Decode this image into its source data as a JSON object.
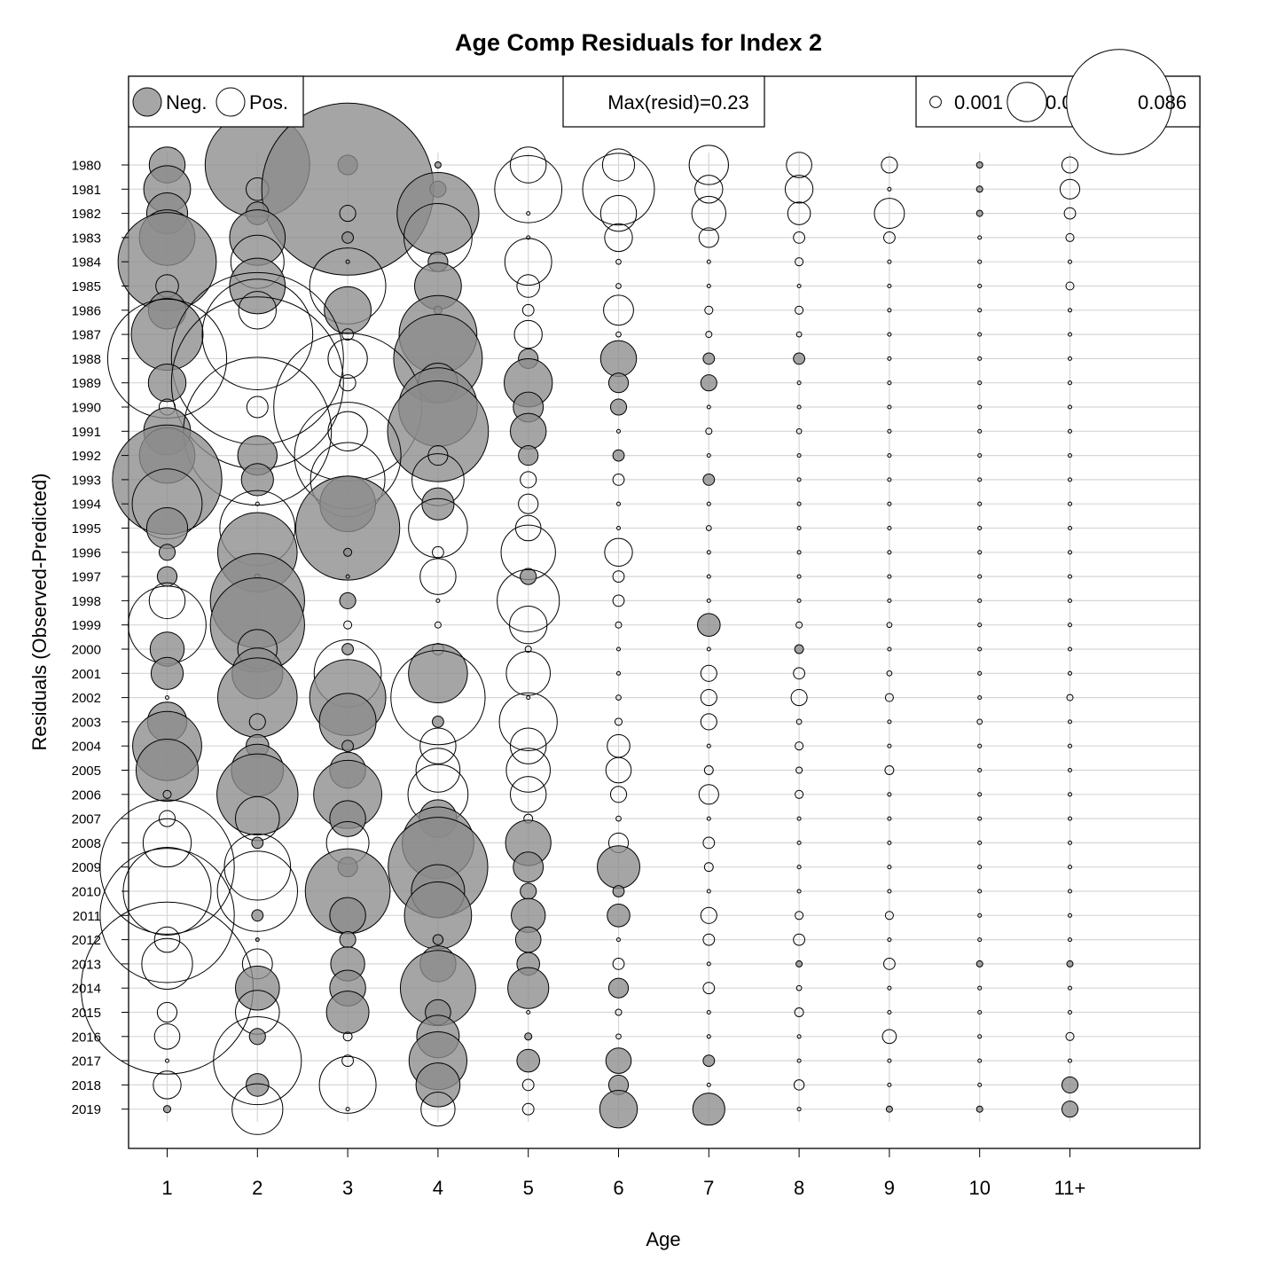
{
  "chart_data": {
    "type": "bubble",
    "title": "Age Comp Residuals for Index 2",
    "xlabel": "Age",
    "ylabel": "Residuals (Observed-Predicted)",
    "categories": [
      "1",
      "2",
      "3",
      "4",
      "5",
      "6",
      "7",
      "8",
      "9",
      "10",
      "11+"
    ],
    "years": [
      1980,
      1981,
      1982,
      1983,
      1984,
      1985,
      1986,
      1987,
      1988,
      1989,
      1990,
      1991,
      1992,
      1993,
      1994,
      1995,
      1996,
      1997,
      1998,
      1999,
      2000,
      2001,
      2002,
      2003,
      2004,
      2005,
      2006,
      2007,
      2008,
      2009,
      2010,
      2011,
      2012,
      2013,
      2014,
      2015,
      2016,
      2017,
      2018,
      2019
    ],
    "residuals": [
      [
        -0.01,
        -0.085,
        -0.003,
        -0.0003,
        0.01,
        0.008,
        0.012,
        0.005,
        0.002,
        -0.0003,
        0.002
      ],
      [
        -0.017,
        0.004,
        -0.23,
        -0.002,
        0.035,
        0.04,
        0.006,
        0.006,
        0.0001,
        -0.0003,
        0.003
      ],
      [
        -0.013,
        -0.004,
        0.002,
        -0.052,
        0.0001,
        0.01,
        0.009,
        0.004,
        0.007,
        -0.0003,
        0.001
      ],
      [
        -0.024,
        -0.024,
        -0.001,
        0.036,
        0.0001,
        0.006,
        0.003,
        0.001,
        0.001,
        0.0001,
        0.0005
      ],
      [
        -0.075,
        0.022,
        0.0001,
        -0.003,
        0.017,
        0.0002,
        0.0001,
        0.0005,
        0.0001,
        0.0001,
        0.0001
      ],
      [
        0.004,
        -0.024,
        0.045,
        -0.017,
        0.004,
        0.0002,
        0.0001,
        0.0001,
        0.0001,
        0.0001,
        0.0005
      ],
      [
        -0.011,
        0.011,
        -0.017,
        -0.0005,
        0.001,
        0.007,
        0.0005,
        0.0005,
        0.0001,
        0.0001,
        0.0001
      ],
      [
        -0.04,
        0.095,
        0.001,
        -0.047,
        0.006,
        0.0002,
        0.0003,
        0.0002,
        0.0001,
        0.0001,
        0.0001
      ],
      [
        0.11,
        0.23,
        0.012,
        -0.061,
        -0.003,
        -0.01,
        -0.001,
        -0.001,
        0.0001,
        0.0001,
        0.0001
      ],
      [
        -0.011,
        0.23,
        0.002,
        -0.012,
        -0.018,
        -0.003,
        -0.002,
        0.0001,
        0.0001,
        0.0001,
        0.0001
      ],
      [
        0.002,
        0.0035,
        0.17,
        -0.048,
        -0.007,
        -0.002,
        0.0001,
        0.0001,
        0.0001,
        0.0001,
        0.0001
      ],
      [
        -0.017,
        0.17,
        0.012,
        -0.079,
        -0.01,
        0.0001,
        0.0003,
        0.0002,
        0.0001,
        0.0001,
        0.0001
      ],
      [
        -0.024,
        -0.012,
        0.088,
        0.003,
        -0.003,
        -0.001,
        0.0001,
        0.0001,
        0.0001,
        0.0001,
        0.0001
      ],
      [
        -0.093,
        -0.008,
        0.043,
        0.021,
        0.002,
        0.001,
        -0.001,
        0.0001,
        0.0001,
        0.0001,
        0.0001
      ],
      [
        0.038,
        0.0001,
        -0.024,
        -0.008,
        0.003,
        0.0001,
        0.0001,
        0.0001,
        0.0001,
        0.0001,
        0.0001
      ],
      [
        -0.013,
        0.044,
        -0.084,
        0.027,
        0.005,
        0.0001,
        0.0002,
        0.0001,
        0.0001,
        0.0001,
        0.0001
      ],
      [
        -0.002,
        -0.049,
        -0.0005,
        0.001,
        0.023,
        0.006,
        0.0001,
        0.0001,
        0.0001,
        0.0001,
        0.0001
      ],
      [
        -0.003,
        -0.0002,
        0.0001,
        0.01,
        -0.002,
        0.001,
        0.0001,
        0.0001,
        0.0001,
        0.0001,
        0.0001
      ],
      [
        0.01,
        -0.069,
        -0.002,
        0.0001,
        0.03,
        0.001,
        0.0001,
        0.0001,
        0.0001,
        0.0001,
        0.0001
      ],
      [
        0.047,
        -0.069,
        0.0005,
        0.0003,
        0.011,
        0.0003,
        -0.004,
        0.0003,
        0.0002,
        0.0001,
        0.0001
      ],
      [
        -0.009,
        0.012,
        -0.001,
        0.001,
        0.0003,
        0.0001,
        0.0001,
        -0.0006,
        0.0001,
        0.0001,
        0.0001
      ],
      [
        -0.008,
        -0.02,
        0.035,
        -0.027,
        0.015,
        0.0001,
        0.002,
        0.001,
        0.0002,
        0.0001,
        0.0001
      ],
      [
        0.0001,
        -0.049,
        -0.045,
        0.069,
        0.0001,
        0.0002,
        0.002,
        0.002,
        0.0005,
        0.0001,
        0.0003
      ],
      [
        -0.012,
        0.002,
        -0.025,
        -0.001,
        0.026,
        0.0004,
        0.002,
        0.0002,
        0.0001,
        0.0002,
        0.0001
      ],
      [
        -0.037,
        -0.004,
        -0.001,
        0.01,
        0.01,
        0.004,
        0.0001,
        0.0005,
        0.0001,
        0.0001,
        0.0001
      ],
      [
        -0.03,
        -0.021,
        -0.01,
        0.015,
        0.015,
        0.005,
        0.0006,
        0.0003,
        0.0006,
        0.0001,
        0.0001
      ],
      [
        0.0005,
        -0.051,
        -0.036,
        0.028,
        0.01,
        0.002,
        0.003,
        0.0005,
        0.0001,
        0.0001,
        0.0001
      ],
      [
        0.002,
        0.015,
        -0.01,
        -0.011,
        0.0006,
        0.0002,
        0.0001,
        0.0001,
        0.0001,
        0.0001,
        0.0001
      ],
      [
        0.018,
        -0.001,
        0.014,
        -0.04,
        -0.016,
        0.003,
        0.001,
        0.0001,
        0.0001,
        0.0001,
        0.0001
      ],
      [
        0.14,
        0.034,
        -0.003,
        -0.077,
        -0.007,
        -0.014,
        0.0006,
        0.0001,
        0.0001,
        0.0001,
        0.0001
      ],
      [
        0.06,
        0.05,
        -0.056,
        -0.022,
        -0.002,
        -0.001,
        0.0001,
        0.0001,
        0.0001,
        0.0001,
        0.0001
      ],
      [
        0.14,
        -0.001,
        -0.01,
        -0.035,
        -0.009,
        -0.004,
        0.002,
        0.0005,
        0.0005,
        0.0001,
        0.0001
      ],
      [
        0.005,
        -0.0001,
        -0.002,
        -0.0008,
        -0.005,
        0.0001,
        0.001,
        0.001,
        0.0001,
        0.0001,
        0.0001
      ],
      [
        0.02,
        0.007,
        -0.009,
        -0.01,
        -0.004,
        0.001,
        0.0001,
        -0.0003,
        0.001,
        -0.0003,
        -0.0003
      ],
      [
        0.23,
        -0.015,
        -0.01,
        -0.044,
        -0.013,
        -0.003,
        0.001,
        0.0002,
        0.0001,
        0.0001,
        0.0001
      ],
      [
        0.003,
        0.015,
        -0.014,
        -0.005,
        0.0001,
        0.0003,
        0.0001,
        0.0006,
        0.0001,
        0.0001,
        0.0001
      ],
      [
        0.005,
        -0.002,
        0.0006,
        -0.014,
        -0.0004,
        0.0002,
        0.0001,
        0.0001,
        0.0015,
        0.0001,
        0.0005
      ],
      [
        0.0001,
        0.06,
        0.001,
        -0.026,
        -0.004,
        -0.005,
        -0.001,
        0.0001,
        0.0001,
        0.0001,
        0.0001
      ],
      [
        0.006,
        -0.004,
        0.025,
        -0.015,
        0.001,
        -0.003,
        0.0001,
        0.0008,
        0.0001,
        0.0001,
        -0.002
      ],
      [
        -0.0004,
        0.02,
        0.0001,
        0.009,
        0.001,
        -0.011,
        -0.008,
        0.0001,
        -0.0003,
        -0.0003,
        -0.002
      ]
    ],
    "colors": {
      "negative": "#a6a6a6",
      "positive": "#ffffff",
      "outline": "#000000"
    },
    "legend_sign": {
      "neg_label": "Neg.",
      "pos_label": "Pos."
    },
    "legend_max": {
      "text": "Max(resid)=0.23"
    },
    "legend_size": {
      "values": [
        0.001,
        0.012,
        0.086
      ],
      "labels": [
        "0.001",
        "0.012",
        "0.086"
      ]
    },
    "grid": true
  }
}
